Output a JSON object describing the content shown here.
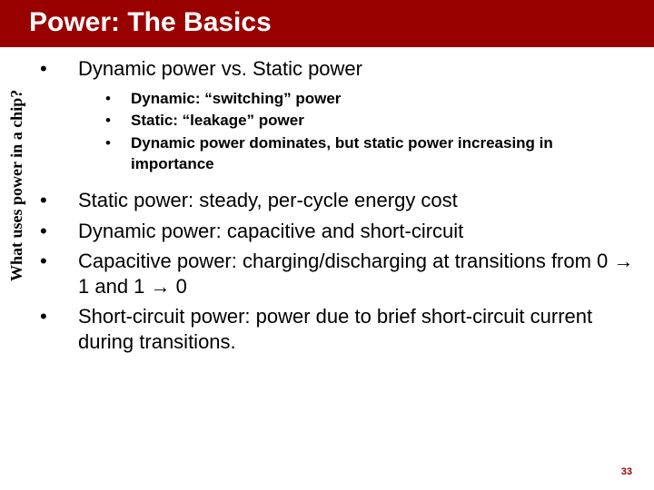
{
  "colors": {
    "title_bg": "#990000",
    "title_fg": "#ffffff",
    "body_bg": "#ffffff",
    "text": "#000000",
    "page_num": "#990000"
  },
  "typography": {
    "title_fontsize": 30,
    "title_weight": "bold",
    "lvl1_fontsize": 22,
    "lvl2_fontsize": 17,
    "lvl2_weight": "bold",
    "sidebar_fontsize": 18,
    "sidebar_family": "Times New Roman",
    "sidebar_weight": "bold",
    "page_num_fontsize": 11
  },
  "title": "Power: The Basics",
  "sidebar": "What uses power in a chip?",
  "page_number": "33",
  "bullets": {
    "lvl1_glyph": "•",
    "lvl2_glyph": "•"
  },
  "items": [
    {
      "text": "Dynamic power vs. Static power",
      "sub": [
        "Dynamic: “switching” power",
        "Static: “leakage” power",
        "Dynamic power dominates, but static power increasing in importance"
      ]
    },
    {
      "text": "Static power: steady, per-cycle energy cost"
    },
    {
      "text": "Dynamic power: capacitive and short-circuit"
    },
    {
      "text_pre": "Capacitive power: charging/discharging at transitions from 0",
      "arrow1": "→",
      "mid": "1 and 1",
      "arrow2": "→",
      "text_post": "0"
    },
    {
      "text": "Short-circuit power: power due to brief short-circuit current during transitions."
    }
  ]
}
